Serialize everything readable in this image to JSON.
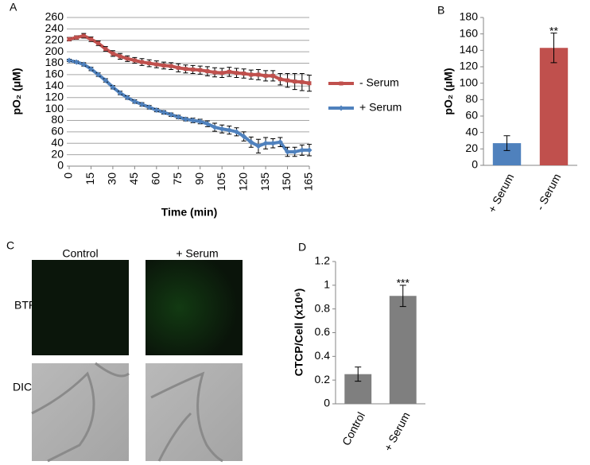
{
  "chart_data": [
    {
      "type": "line",
      "panel_label": "A",
      "xlabel": "Time (min)",
      "ylabel": "pO₂ (μM)",
      "x": [
        0,
        5,
        10,
        15,
        20,
        25,
        30,
        35,
        40,
        45,
        50,
        55,
        60,
        65,
        70,
        75,
        80,
        85,
        90,
        95,
        100,
        105,
        110,
        115,
        120,
        125,
        130,
        135,
        140,
        145,
        150,
        155,
        160,
        165
      ],
      "xlim": [
        0,
        165
      ],
      "xticks": [
        0,
        15,
        30,
        45,
        60,
        75,
        90,
        105,
        120,
        135,
        150,
        165
      ],
      "ylim": [
        0,
        260
      ],
      "yticks": [
        0,
        20,
        40,
        60,
        80,
        100,
        120,
        140,
        160,
        180,
        200,
        220,
        240,
        260
      ],
      "grid": true,
      "legend": "right",
      "series": [
        {
          "name": "- Serum",
          "color": "#c0504d",
          "marker": "square",
          "values": [
            222,
            225,
            228,
            222,
            215,
            205,
            197,
            192,
            188,
            185,
            182,
            180,
            178,
            176,
            175,
            172,
            170,
            169,
            168,
            166,
            164,
            163,
            165,
            163,
            162,
            160,
            160,
            158,
            158,
            152,
            150,
            148,
            147,
            145
          ],
          "errors": [
            3,
            3,
            4,
            4,
            4,
            4,
            5,
            5,
            5,
            5,
            6,
            6,
            6,
            6,
            6,
            7,
            7,
            7,
            7,
            8,
            8,
            8,
            8,
            8,
            8,
            8,
            9,
            9,
            9,
            10,
            12,
            14,
            15,
            14
          ]
        },
        {
          "name": "+ Serum",
          "color": "#4f81bd",
          "marker": "diamond",
          "values": [
            185,
            182,
            178,
            170,
            160,
            150,
            138,
            128,
            120,
            113,
            108,
            103,
            98,
            94,
            90,
            86,
            82,
            80,
            78,
            74,
            68,
            65,
            63,
            60,
            52,
            42,
            35,
            40,
            40,
            42,
            25,
            25,
            28,
            28
          ],
          "errors": [
            2,
            2,
            3,
            3,
            3,
            3,
            3,
            3,
            3,
            3,
            3,
            3,
            3,
            3,
            3,
            3,
            3,
            4,
            4,
            5,
            7,
            7,
            7,
            7,
            8,
            9,
            12,
            10,
            8,
            8,
            8,
            8,
            9,
            10
          ]
        }
      ]
    },
    {
      "type": "bar",
      "panel_label": "B",
      "ylabel": "pO₂ (μM)",
      "categories": [
        "+ Serum",
        "- Serum"
      ],
      "values": [
        27,
        143
      ],
      "errors": [
        9,
        18
      ],
      "colors": [
        "#4f81bd",
        "#c0504d"
      ],
      "ylim": [
        0,
        180
      ],
      "yticks": [
        0,
        20,
        40,
        60,
        80,
        100,
        120,
        140,
        160,
        180
      ],
      "annotation": {
        "text": "**",
        "category": "- Serum"
      }
    },
    {
      "type": "bar",
      "panel_label": "D",
      "ylabel": "CTCP/Cell (x10⁶)",
      "categories": [
        "Control",
        "+ Serum"
      ],
      "values": [
        0.25,
        0.91
      ],
      "errors": [
        0.06,
        0.09
      ],
      "colors": [
        "#7f7f7f",
        "#7f7f7f"
      ],
      "ylim": [
        0,
        1.2
      ],
      "yticks": [
        0,
        0.2,
        0.4,
        0.6,
        0.8,
        1,
        1.2
      ],
      "annotation": {
        "text": "***",
        "category": "+ Serum"
      }
    }
  ],
  "panel_c": {
    "label": "C",
    "columns": [
      "Control",
      "+ Serum"
    ],
    "rows": [
      "BTP",
      "DIC"
    ]
  }
}
